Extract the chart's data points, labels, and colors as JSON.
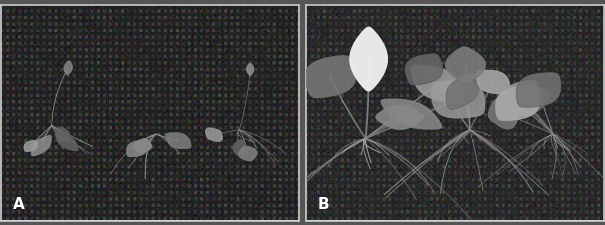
{
  "figure_width": 6.05,
  "figure_height": 2.25,
  "dpi": 100,
  "bg_color": "#555555",
  "label_A": "A",
  "label_B": "B",
  "label_color": "#ffffff",
  "label_fontsize": 11,
  "label_fontweight": "bold",
  "border_color": "#ffffff",
  "border_linewidth": 1.5,
  "panel_A_bg": "#2a2a2a",
  "panel_B_bg": "#2e2e2e",
  "dot_density": 5000,
  "dot_size_max": 3.0,
  "noise_level": 0.04
}
